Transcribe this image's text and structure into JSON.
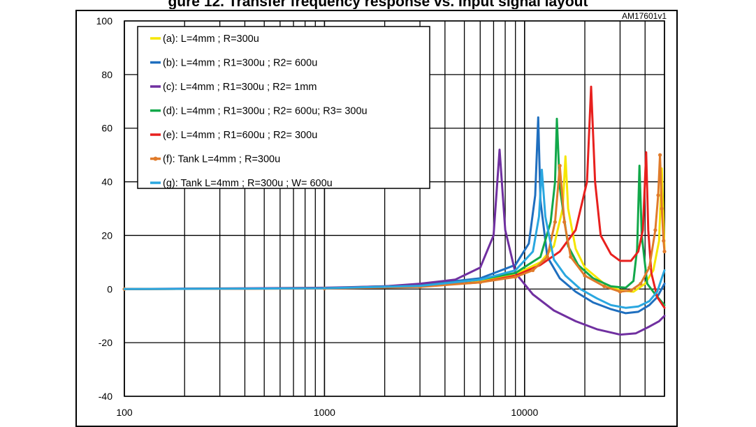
{
  "figure": {
    "title": "gure 12. Transfer frequency response vs. Input signal layout",
    "ref_label": "AM17601v1"
  },
  "chart_data": {
    "type": "line",
    "title": "",
    "xlabel": "",
    "ylabel": "",
    "x_scale": "log",
    "xlim": [
      100,
      50000
    ],
    "ylim": [
      -40,
      100
    ],
    "grid": true,
    "legend_position": "top-left",
    "x_ticks": [
      "100",
      "1000",
      "10000"
    ],
    "y_ticks": [
      "-40",
      "-20",
      "0",
      "20",
      "40",
      "60",
      "80",
      "100"
    ],
    "series": [
      {
        "name": "(a): L=4mm ; R=300u",
        "color": "#f5e600",
        "marker": false,
        "points": [
          [
            100,
            0
          ],
          [
            1000,
            0.3
          ],
          [
            3000,
            1
          ],
          [
            6000,
            3
          ],
          [
            9000,
            5.5
          ],
          [
            12000,
            10
          ],
          [
            14000,
            16
          ],
          [
            15500,
            30
          ],
          [
            16000,
            49.5
          ],
          [
            16500,
            30
          ],
          [
            18000,
            15
          ],
          [
            20000,
            8
          ],
          [
            25000,
            2
          ],
          [
            30000,
            -0.5
          ],
          [
            35000,
            -1
          ],
          [
            40000,
            2
          ],
          [
            44000,
            7
          ],
          [
            47000,
            18
          ],
          [
            48500,
            45
          ],
          [
            49500,
            25
          ],
          [
            50000,
            15
          ]
        ]
      },
      {
        "name": "(b): L=4mm ; R1=300u ; R2= 600u",
        "color": "#1f6fbf",
        "marker": false,
        "points": [
          [
            100,
            0
          ],
          [
            1000,
            0.3
          ],
          [
            3000,
            1.5
          ],
          [
            6000,
            4
          ],
          [
            9000,
            9
          ],
          [
            10500,
            17
          ],
          [
            11300,
            35
          ],
          [
            11700,
            64
          ],
          [
            12000,
            33
          ],
          [
            13000,
            12
          ],
          [
            15000,
            4
          ],
          [
            18000,
            -1
          ],
          [
            22000,
            -5
          ],
          [
            27000,
            -7.5
          ],
          [
            32000,
            -9
          ],
          [
            37000,
            -8.5
          ],
          [
            42000,
            -6
          ],
          [
            46000,
            -3
          ],
          [
            50000,
            2
          ]
        ]
      },
      {
        "name": "(c): L=4mm ; R1=300u ; R2= 1mm",
        "color": "#7030a0",
        "marker": false,
        "points": [
          [
            100,
            0
          ],
          [
            1000,
            0.5
          ],
          [
            2000,
            1
          ],
          [
            3000,
            2
          ],
          [
            4500,
            3.5
          ],
          [
            6000,
            8
          ],
          [
            7000,
            20
          ],
          [
            7500,
            52
          ],
          [
            8000,
            22
          ],
          [
            9000,
            6
          ],
          [
            11000,
            -2
          ],
          [
            14000,
            -8
          ],
          [
            18000,
            -12
          ],
          [
            23000,
            -15
          ],
          [
            30000,
            -17
          ],
          [
            36000,
            -16.5
          ],
          [
            42000,
            -14
          ],
          [
            47000,
            -12
          ],
          [
            50000,
            -10
          ]
        ]
      },
      {
        "name": "(d): L=4mm ; R1=300u ; R2= 600u; R3= 300u",
        "color": "#12a84a",
        "marker": false,
        "points": [
          [
            100,
            0
          ],
          [
            1000,
            0.3
          ],
          [
            3000,
            1.2
          ],
          [
            6000,
            3.5
          ],
          [
            9000,
            6
          ],
          [
            12000,
            12
          ],
          [
            13500,
            25
          ],
          [
            14200,
            40
          ],
          [
            14500,
            63.5
          ],
          [
            15000,
            38
          ],
          [
            16500,
            16
          ],
          [
            18500,
            9
          ],
          [
            22000,
            4
          ],
          [
            27000,
            1
          ],
          [
            32000,
            0.5
          ],
          [
            35000,
            3
          ],
          [
            36500,
            15
          ],
          [
            37500,
            46
          ],
          [
            38500,
            20
          ],
          [
            41000,
            2
          ],
          [
            45000,
            -2
          ],
          [
            50000,
            -6
          ]
        ]
      },
      {
        "name": "(e): L=4mm ; R1=600u ; R2= 300u",
        "color": "#e8201e",
        "marker": false,
        "points": [
          [
            100,
            0
          ],
          [
            1000,
            0.3
          ],
          [
            3000,
            1
          ],
          [
            6000,
            2.5
          ],
          [
            9000,
            5
          ],
          [
            12000,
            9
          ],
          [
            15000,
            14
          ],
          [
            18000,
            22
          ],
          [
            20500,
            40
          ],
          [
            21500,
            75.5
          ],
          [
            22500,
            40
          ],
          [
            24000,
            20
          ],
          [
            27000,
            13
          ],
          [
            30000,
            10.5
          ],
          [
            34000,
            10.5
          ],
          [
            37000,
            14
          ],
          [
            39000,
            22
          ],
          [
            40500,
            51
          ],
          [
            41500,
            22
          ],
          [
            43000,
            6
          ],
          [
            46000,
            -3
          ],
          [
            50000,
            -7
          ]
        ]
      },
      {
        "name": "(f): Tank L=4mm ; R=300u",
        "color": "#e07b2a",
        "marker": true,
        "points": [
          [
            100,
            0
          ],
          [
            1000,
            0.2
          ],
          [
            3000,
            0.8
          ],
          [
            6000,
            2.5
          ],
          [
            9000,
            4.5
          ],
          [
            11000,
            7
          ],
          [
            13000,
            12
          ],
          [
            14200,
            25
          ],
          [
            15000,
            46
          ],
          [
            15800,
            25
          ],
          [
            17000,
            12
          ],
          [
            20000,
            5
          ],
          [
            25000,
            1
          ],
          [
            30000,
            -1
          ],
          [
            34000,
            -0.5
          ],
          [
            38000,
            2
          ],
          [
            42000,
            8
          ],
          [
            45000,
            22
          ],
          [
            46500,
            35
          ],
          [
            47500,
            50
          ],
          [
            48500,
            30
          ],
          [
            49500,
            18
          ],
          [
            50000,
            14
          ]
        ]
      },
      {
        "name": "(g): Tank L=4mm ; R=300u ; W= 600u",
        "color": "#2aa7e0",
        "marker": false,
        "points": [
          [
            100,
            0
          ],
          [
            1000,
            0.3
          ],
          [
            3000,
            1.2
          ],
          [
            6000,
            3.5
          ],
          [
            9000,
            7
          ],
          [
            11000,
            14
          ],
          [
            11800,
            27
          ],
          [
            12200,
            44.5
          ],
          [
            12700,
            27
          ],
          [
            14000,
            11
          ],
          [
            16000,
            5
          ],
          [
            19000,
            0
          ],
          [
            23000,
            -3.5
          ],
          [
            27000,
            -6
          ],
          [
            32000,
            -7
          ],
          [
            37000,
            -6.5
          ],
          [
            42000,
            -4.5
          ],
          [
            46000,
            -1
          ],
          [
            50000,
            7
          ]
        ]
      }
    ]
  }
}
